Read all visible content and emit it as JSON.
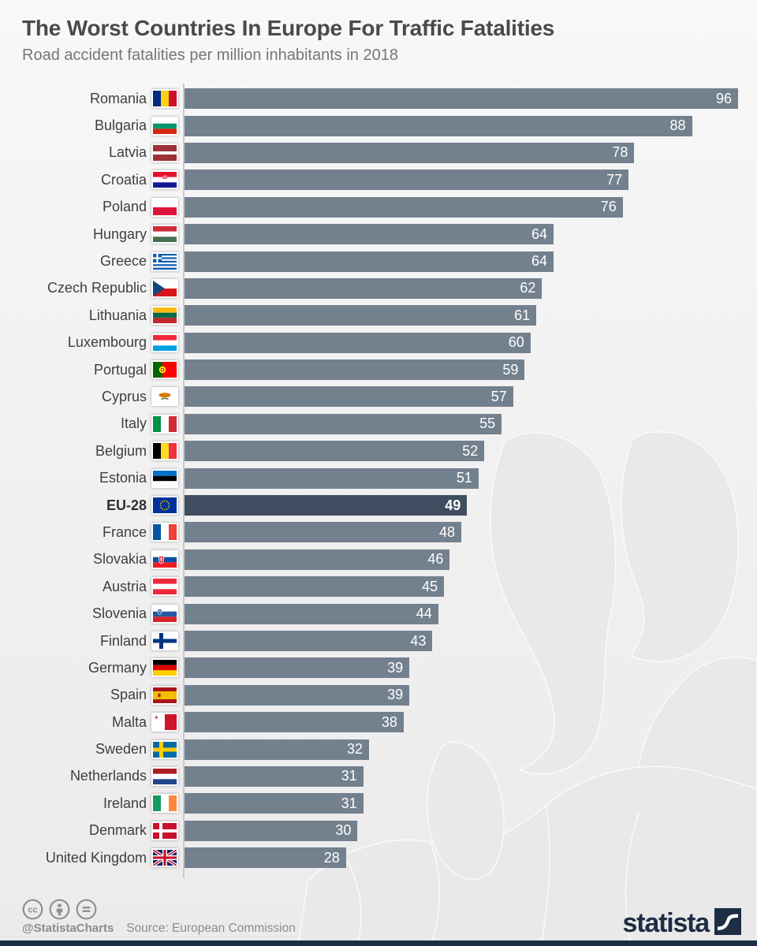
{
  "chart_data": {
    "type": "bar",
    "orientation": "horizontal",
    "title": "The Worst Countries In Europe For Traffic Fatalities",
    "subtitle": "Road accident fatalities per million inhabitants in 2018",
    "xlabel": "",
    "ylabel": "",
    "xlim": [
      0,
      96
    ],
    "grid": false,
    "legend": "none",
    "value_labels": "inside-end, white",
    "highlight": "EU-28",
    "bar_color": "#73808E",
    "highlight_color": "#3E4D5F",
    "rows": [
      {
        "label": "Romania",
        "value": 96,
        "flag": "romania"
      },
      {
        "label": "Bulgaria",
        "value": 88,
        "flag": "bulgaria"
      },
      {
        "label": "Latvia",
        "value": 78,
        "flag": "latvia"
      },
      {
        "label": "Croatia",
        "value": 77,
        "flag": "croatia"
      },
      {
        "label": "Poland",
        "value": 76,
        "flag": "poland"
      },
      {
        "label": "Hungary",
        "value": 64,
        "flag": "hungary"
      },
      {
        "label": "Greece",
        "value": 64,
        "flag": "greece"
      },
      {
        "label": "Czech Republic",
        "value": 62,
        "flag": "czech-republic"
      },
      {
        "label": "Lithuania",
        "value": 61,
        "flag": "lithuania"
      },
      {
        "label": "Luxembourg",
        "value": 60,
        "flag": "luxembourg"
      },
      {
        "label": "Portugal",
        "value": 59,
        "flag": "portugal"
      },
      {
        "label": "Cyprus",
        "value": 57,
        "flag": "cyprus"
      },
      {
        "label": "Italy",
        "value": 55,
        "flag": "italy"
      },
      {
        "label": "Belgium",
        "value": 52,
        "flag": "belgium"
      },
      {
        "label": "Estonia",
        "value": 51,
        "flag": "estonia"
      },
      {
        "label": "EU-28",
        "value": 49,
        "flag": "european-union"
      },
      {
        "label": "France",
        "value": 48,
        "flag": "france"
      },
      {
        "label": "Slovakia",
        "value": 46,
        "flag": "slovakia"
      },
      {
        "label": "Austria",
        "value": 45,
        "flag": "austria"
      },
      {
        "label": "Slovenia",
        "value": 44,
        "flag": "slovenia"
      },
      {
        "label": "Finland",
        "value": 43,
        "flag": "finland"
      },
      {
        "label": "Germany",
        "value": 39,
        "flag": "germany"
      },
      {
        "label": "Spain",
        "value": 39,
        "flag": "spain"
      },
      {
        "label": "Malta",
        "value": 38,
        "flag": "malta"
      },
      {
        "label": "Sweden",
        "value": 32,
        "flag": "sweden"
      },
      {
        "label": "Netherlands",
        "value": 31,
        "flag": "netherlands"
      },
      {
        "label": "Ireland",
        "value": 31,
        "flag": "ireland"
      },
      {
        "label": "Denmark",
        "value": 30,
        "flag": "denmark"
      },
      {
        "label": "United Kingdom",
        "value": 28,
        "flag": "united-kingdom"
      }
    ]
  },
  "footer": {
    "license_icons": [
      "cc-icon",
      "attribution-icon",
      "equal-icon"
    ],
    "handle": "@StatistaCharts",
    "source": "Source: European Commission",
    "brand": "statista",
    "brand_color": "#1d2d44"
  }
}
